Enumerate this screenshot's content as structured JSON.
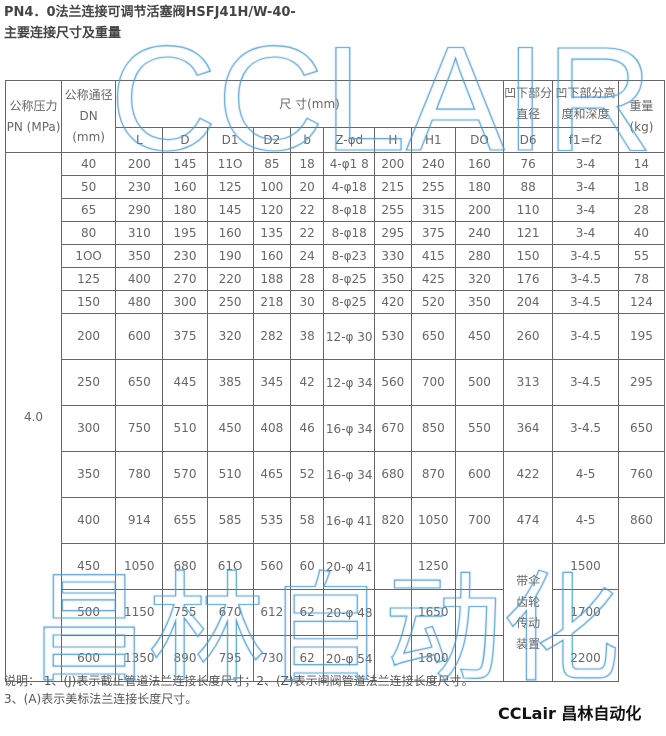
{
  "title_line1": "PN4．0法兰连接可调节活塞阀HSFJ41H/W-40-",
  "title_line2": "主要连接尺寸及重量",
  "headers": {
    "pn": "公称压力 PN (MPa)",
    "dn": "公称通径 DN (mm)",
    "size": "尺 寸(mm)",
    "d6_group": "凹下部分直径",
    "f_group": "凹下部分高度和深度",
    "weight": "重量(kg)",
    "sub": [
      "L",
      "D",
      "D1",
      "D2",
      "b",
      "Z-φd",
      "H",
      "H1",
      "DO",
      "D6",
      "f1=f2"
    ]
  },
  "pn_value": "4.0",
  "rows": [
    [
      "40",
      "200",
      "145",
      "11O",
      "85",
      "18",
      "4-φ1 8",
      "200",
      "240",
      "160",
      "76",
      "3-4",
      "14"
    ],
    [
      "50",
      "230",
      "160",
      "125",
      "100",
      "20",
      "4-φ18",
      "215",
      "255",
      "180",
      "88",
      "3-4",
      "18"
    ],
    [
      "65",
      "290",
      "180",
      "145",
      "120",
      "22",
      "8-φ18",
      "255",
      "315",
      "200",
      "110",
      "3-4",
      "28"
    ],
    [
      "80",
      "310",
      "195",
      "160",
      "135",
      "22",
      "8-φ18",
      "295",
      "375",
      "240",
      "121",
      "3-4",
      "40"
    ],
    [
      "1OO",
      "350",
      "230",
      "190",
      "160",
      "24",
      "8-φ23",
      "330",
      "415",
      "280",
      "150",
      "3-4.5",
      "55"
    ],
    [
      "125",
      "400",
      "270",
      "220",
      "188",
      "28",
      "8-φ25",
      "350",
      "425",
      "320",
      "176",
      "3-4.5",
      "78"
    ],
    [
      "150",
      "480",
      "300",
      "250",
      "218",
      "30",
      "8-φ25",
      "420",
      "520",
      "350",
      "204",
      "3-4.5",
      "124"
    ],
    [
      "200",
      "600",
      "375",
      "320",
      "282",
      "38",
      "12-φ 30",
      "530",
      "650",
      "450",
      "260",
      "3-4.5",
      "195"
    ],
    [
      "250",
      "650",
      "445",
      "385",
      "345",
      "42",
      "12-φ 34",
      "560",
      "700",
      "500",
      "313",
      "3-4.5",
      "295"
    ],
    [
      "300",
      "750",
      "510",
      "450",
      "408",
      "46",
      "16-φ 34",
      "670",
      "850",
      "550",
      "364",
      "3-4.5",
      "650"
    ],
    [
      "350",
      "780",
      "570",
      "510",
      "465",
      "52",
      "16-φ 34",
      "680",
      "870",
      "600",
      "422",
      "4-5",
      "760"
    ],
    [
      "400",
      "914",
      "655",
      "585",
      "535",
      "58",
      "16-φ 41",
      "820",
      "1050",
      "700",
      "474",
      "4-5",
      "860"
    ]
  ],
  "big_rows": [
    [
      "450",
      "1050",
      "680",
      "61O",
      "560",
      "60",
      "20-φ 41",
      "",
      "1250",
      "",
      "",
      "1500"
    ],
    [
      "500",
      "1150",
      "755",
      "670",
      "612",
      "62",
      "20-φ 48",
      "",
      "1650",
      "",
      "",
      "1700"
    ],
    [
      "600",
      "1350",
      "890",
      "795",
      "730",
      "62",
      "20-φ 54",
      "",
      "1800",
      "",
      "",
      "2200"
    ]
  ],
  "gear_note": "带伞齿轮传动装置",
  "note": "说明： 1、(J)表示截止管道法兰连接长度尺寸；2、(Z)表示闸阀管道法兰连接长度尺寸。3、(A)表示美标法兰连接长度尺寸。",
  "watermark_top": "CCLAIR",
  "watermark_bottom": "昌林自动化",
  "brand": "CCLair 昌林自动化"
}
